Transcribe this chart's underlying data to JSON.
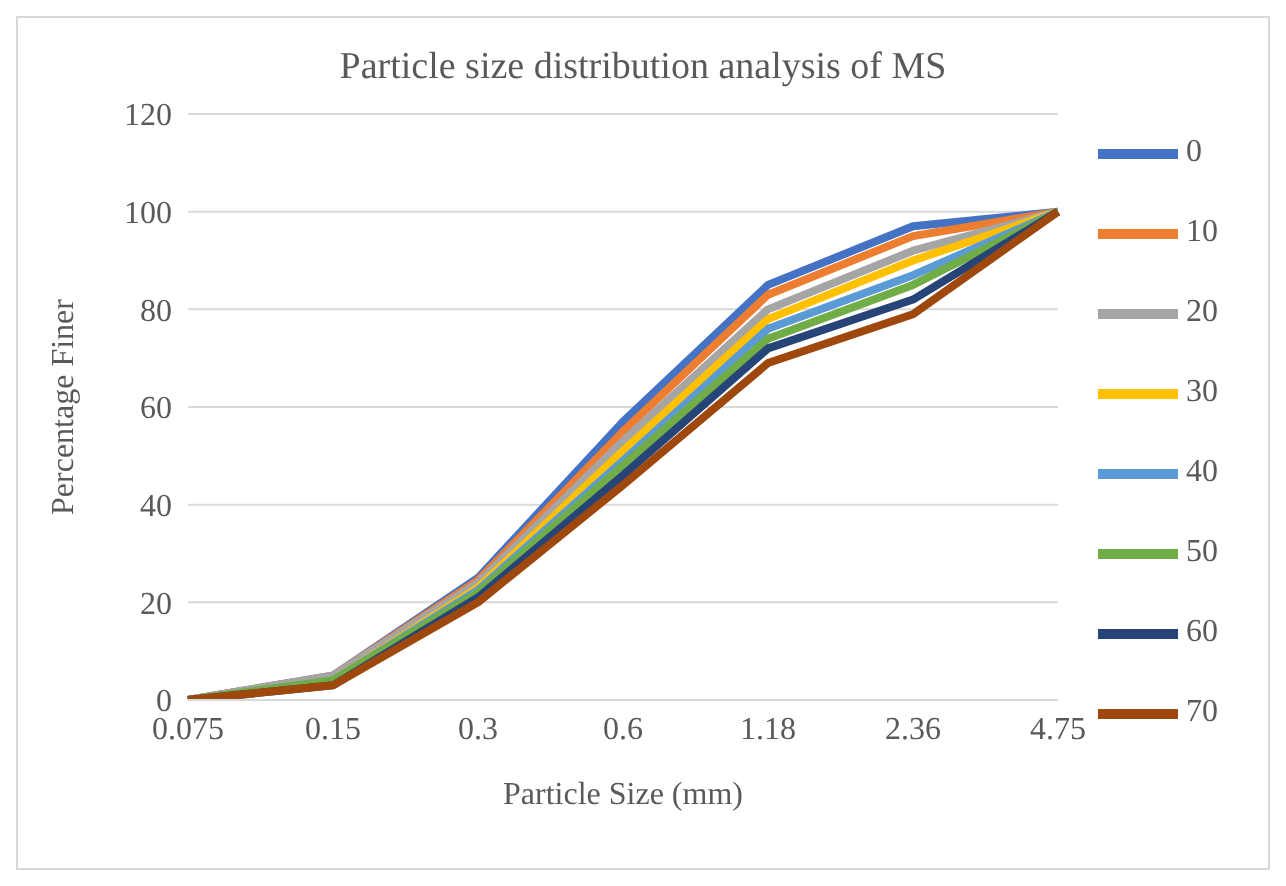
{
  "chart_data": {
    "type": "line",
    "title": "Particle size distribution analysis of MS",
    "xlabel": "Particle Size (mm)",
    "ylabel": "Percentage Finer",
    "categories": [
      "0.075",
      "0.15",
      "0.3",
      "0.6",
      "1.18",
      "2.36",
      "4.75"
    ],
    "ylim": [
      0,
      120
    ],
    "yticks": [
      0,
      20,
      40,
      60,
      80,
      100,
      120
    ],
    "grid": "y",
    "legend": "right",
    "marker": "none",
    "line_style": "solid",
    "series": [
      {
        "name": "0",
        "color": "#4472c4",
        "values": [
          0,
          5,
          25,
          57,
          85,
          97,
          100
        ]
      },
      {
        "name": "10",
        "color": "#ed7d31",
        "values": [
          0,
          5,
          24.5,
          55,
          83,
          95,
          100
        ]
      },
      {
        "name": "20",
        "color": "#a5a5a5",
        "values": [
          0,
          5,
          24,
          53,
          80,
          92,
          100
        ]
      },
      {
        "name": "30",
        "color": "#ffc000",
        "values": [
          0,
          4,
          23,
          51,
          78,
          90,
          100
        ]
      },
      {
        "name": "40",
        "color": "#5b9bd5",
        "values": [
          0,
          4,
          22.5,
          49,
          76,
          87,
          100
        ]
      },
      {
        "name": "50",
        "color": "#70ad47",
        "values": [
          0,
          4,
          22,
          48,
          74,
          85,
          100
        ]
      },
      {
        "name": "60",
        "color": "#264478",
        "values": [
          0,
          3,
          21,
          46,
          72,
          82,
          100
        ]
      },
      {
        "name": "70",
        "color": "#9e480e",
        "values": [
          0,
          3,
          20,
          44,
          69,
          79,
          100
        ]
      }
    ]
  }
}
